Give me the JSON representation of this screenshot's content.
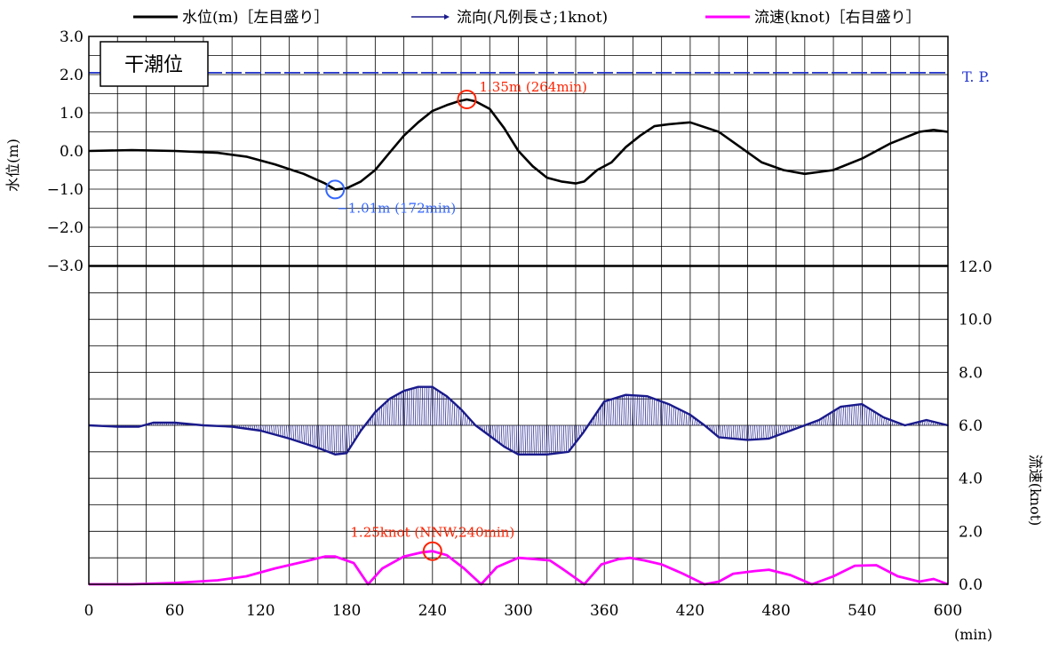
{
  "legend": {
    "water_level": "水位(m)［左目盛り］",
    "flow_direction": "流向(凡例長さ;1knot)",
    "flow_speed": "流速(knot)［右目盛り］"
  },
  "colors": {
    "water_level": "#000000",
    "flow_direction": "#1a1a8c",
    "flow_speed": "#ff00ff",
    "tp_line": "#2233cc",
    "min_marker": "#3366ff",
    "max_marker": "#ff2200",
    "grid": "#000000"
  },
  "chart_data": {
    "type": "line",
    "x_unit_label": "(min)",
    "xlim": [
      0,
      600
    ],
    "x_ticks": [
      0,
      60,
      120,
      180,
      240,
      300,
      360,
      420,
      480,
      540,
      600
    ],
    "water_panel": {
      "ylabel": "水位(m)",
      "ylim": [
        -3,
        3
      ],
      "y_tick_labels": [
        "3.0",
        "2.0",
        "1.0",
        "0.0",
        "−1.0",
        "−2.0",
        "−3.0"
      ],
      "box_label": "干潮位",
      "tp_label": "T. P.",
      "tp_level": 2.05,
      "series": {
        "name": "水位(m)",
        "x": [
          0,
          30,
          60,
          90,
          110,
          130,
          150,
          165,
          172,
          180,
          190,
          200,
          210,
          220,
          230,
          240,
          250,
          258,
          264,
          270,
          280,
          290,
          300,
          310,
          320,
          330,
          340,
          346,
          355,
          365,
          375,
          385,
          395,
          405,
          420,
          440,
          455,
          470,
          485,
          500,
          520,
          540,
          560,
          580,
          590,
          600
        ],
        "y": [
          0.0,
          0.02,
          0.0,
          -0.05,
          -0.15,
          -0.35,
          -0.6,
          -0.85,
          -1.01,
          -0.98,
          -0.8,
          -0.5,
          -0.05,
          0.4,
          0.75,
          1.05,
          1.2,
          1.3,
          1.35,
          1.3,
          1.1,
          0.6,
          0.0,
          -0.4,
          -0.7,
          -0.8,
          -0.85,
          -0.8,
          -0.5,
          -0.3,
          0.1,
          0.4,
          0.65,
          0.7,
          0.75,
          0.5,
          0.1,
          -0.3,
          -0.5,
          -0.6,
          -0.5,
          -0.2,
          0.2,
          0.5,
          0.55,
          0.5
        ]
      },
      "annotations": [
        {
          "text": "−1.01m (172min)",
          "x": 172,
          "y": -1.01,
          "kind": "min"
        },
        {
          "text": "1.35m (264min)",
          "x": 264,
          "y": 1.35,
          "kind": "max"
        }
      ]
    },
    "speed_panel": {
      "ylabel": "流速(knot)",
      "ylim": [
        0,
        12
      ],
      "y_tick_labels": [
        "12.0",
        "10.0",
        "8.0",
        "6.0",
        "4.0",
        "2.0",
        "0.0"
      ],
      "direction_baseline": 6.0,
      "flow_direction_envelope": {
        "name": "流向",
        "x": [
          0,
          20,
          35,
          45,
          60,
          80,
          100,
          120,
          140,
          160,
          172,
          180,
          190,
          200,
          210,
          220,
          230,
          240,
          250,
          260,
          270,
          280,
          290,
          300,
          310,
          320,
          335,
          345,
          360,
          375,
          390,
          405,
          420,
          430,
          440,
          460,
          475,
          490,
          500,
          510,
          525,
          540,
          555,
          570,
          585,
          600
        ],
        "y": [
          6.0,
          5.95,
          5.95,
          6.1,
          6.1,
          6.0,
          5.95,
          5.8,
          5.5,
          5.15,
          4.9,
          4.95,
          5.8,
          6.5,
          7.0,
          7.3,
          7.45,
          7.45,
          7.1,
          6.6,
          6.0,
          5.6,
          5.2,
          4.9,
          4.9,
          4.9,
          5.0,
          5.7,
          6.9,
          7.15,
          7.1,
          6.8,
          6.4,
          6.0,
          5.55,
          5.45,
          5.5,
          5.8,
          6.0,
          6.2,
          6.7,
          6.8,
          6.3,
          6.0,
          6.2,
          6.0
        ]
      },
      "flow_speed": {
        "name": "流速(knot)",
        "x": [
          0,
          30,
          60,
          90,
          110,
          130,
          150,
          165,
          172,
          185,
          195,
          205,
          220,
          232,
          240,
          250,
          262,
          274,
          285,
          300,
          312,
          322,
          333,
          346,
          358,
          370,
          378,
          388,
          400,
          415,
          430,
          440,
          450,
          465,
          475,
          490,
          505,
          520,
          535,
          550,
          565,
          580,
          590,
          600
        ],
        "y": [
          0.0,
          0.0,
          0.05,
          0.15,
          0.3,
          0.6,
          0.85,
          1.05,
          1.05,
          0.8,
          0.0,
          0.6,
          1.05,
          1.2,
          1.25,
          1.1,
          0.6,
          0.0,
          0.65,
          1.0,
          0.95,
          0.9,
          0.5,
          0.0,
          0.75,
          0.95,
          1.0,
          0.9,
          0.75,
          0.4,
          0.0,
          0.1,
          0.4,
          0.5,
          0.55,
          0.35,
          0.0,
          0.3,
          0.7,
          0.72,
          0.3,
          0.1,
          0.2,
          0.0
        ]
      },
      "annotations": [
        {
          "text": "1.25knot (NNW,240min)",
          "x": 240,
          "y": 1.25,
          "kind": "max"
        }
      ]
    }
  }
}
